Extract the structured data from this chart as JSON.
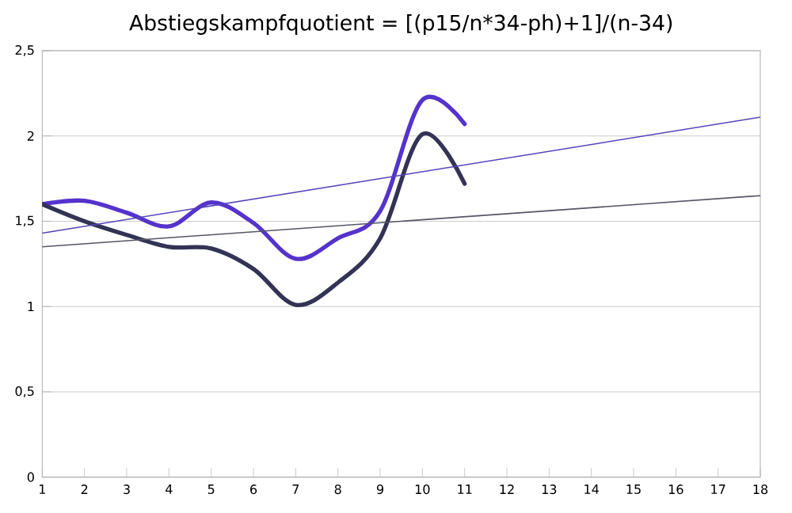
{
  "chart_data": {
    "type": "line",
    "title": "Abstiegskampfquotient = [(p15/n*34-ph)+1]/(n-34)",
    "xlim": [
      1,
      18
    ],
    "xticks": [
      1,
      2,
      3,
      4,
      5,
      6,
      7,
      8,
      9,
      10,
      11,
      12,
      13,
      14,
      15,
      16,
      17,
      18
    ],
    "ylim": [
      0,
      2.5
    ],
    "yticks": [
      {
        "value": 0,
        "label": "0"
      },
      {
        "value": 0.5,
        "label": "0,5"
      },
      {
        "value": 1,
        "label": "1"
      },
      {
        "value": 1.5,
        "label": "1,5"
      },
      {
        "value": 2,
        "label": "2"
      },
      {
        "value": 2.5,
        "label": "2,5"
      }
    ],
    "grid": "y",
    "marker": "none",
    "series": [
      {
        "color": "#5533cc",
        "x": [
          1,
          2,
          3,
          4,
          5,
          6,
          7,
          8,
          9,
          10,
          11
        ],
        "values": [
          1.6,
          1.62,
          1.55,
          1.47,
          1.61,
          1.49,
          1.28,
          1.4,
          1.56,
          2.21,
          2.07
        ]
      },
      {
        "color": "#333355",
        "x": [
          1,
          2,
          3,
          4,
          5,
          6,
          7,
          8,
          9,
          10,
          11
        ],
        "values": [
          1.6,
          1.5,
          1.42,
          1.35,
          1.34,
          1.22,
          1.01,
          1.14,
          1.4,
          2.01,
          1.72
        ]
      },
      {
        "type": "line",
        "color": "#5544bb",
        "x": [
          1,
          18
        ],
        "values": [
          1.43,
          2.11
        ]
      },
      {
        "type": "line",
        "color": "#555566",
        "x": [
          1,
          18
        ],
        "values": [
          1.35,
          1.65
        ]
      }
    ]
  }
}
